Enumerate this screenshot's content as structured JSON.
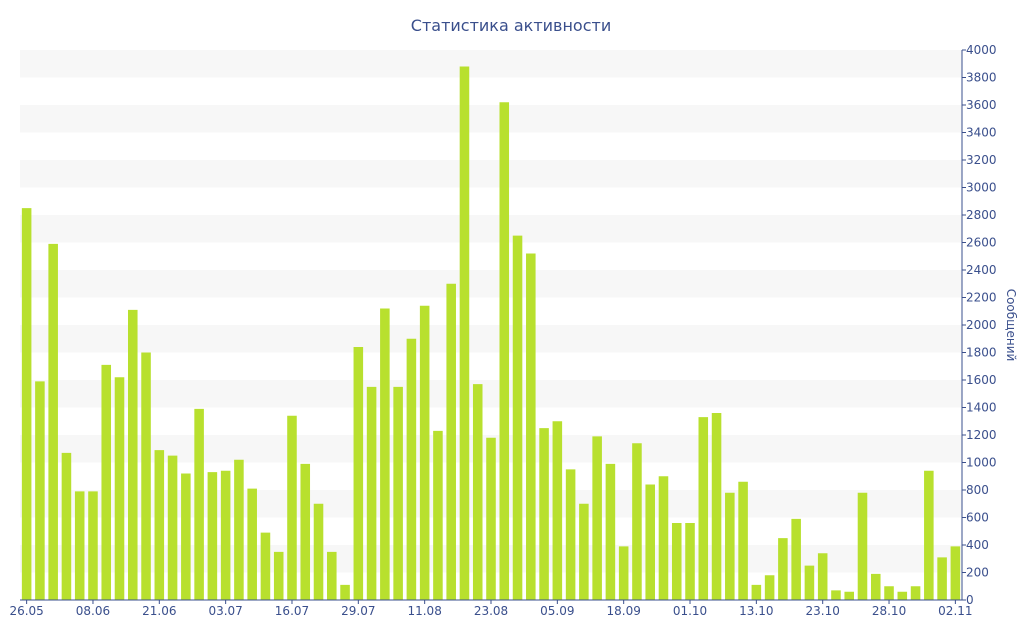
{
  "colors": {
    "bar": "#b8e02e",
    "band": "#f7f7f7",
    "axis": "#3a4f8c",
    "text": "#3a4f8c"
  },
  "chart_data": {
    "type": "bar",
    "title": "Статистика активности",
    "xlabel": "",
    "ylabel": "Сообщений",
    "ylim": [
      0,
      4000
    ],
    "yticks": [
      0,
      200,
      400,
      600,
      800,
      1000,
      1200,
      1400,
      1600,
      1800,
      2000,
      2200,
      2400,
      2600,
      2800,
      3000,
      3200,
      3400,
      3600,
      3800,
      4000
    ],
    "y_axis_position": "right",
    "alternating_bands": true,
    "xtick_labels": [
      {
        "label": "26.05",
        "index": 0
      },
      {
        "label": "08.06",
        "index": 5
      },
      {
        "label": "21.06",
        "index": 10
      },
      {
        "label": "03.07",
        "index": 15
      },
      {
        "label": "16.07",
        "index": 20
      },
      {
        "label": "29.07",
        "index": 25
      },
      {
        "label": "11.08",
        "index": 30
      },
      {
        "label": "23.08",
        "index": 35
      },
      {
        "label": "05.09",
        "index": 40
      },
      {
        "label": "18.09",
        "index": 45
      },
      {
        "label": "01.10",
        "index": 50
      },
      {
        "label": "13.10",
        "index": 55
      },
      {
        "label": "23.10",
        "index": 60
      },
      {
        "label": "28.10",
        "index": 65
      },
      {
        "label": "02.11",
        "index": 70
      }
    ],
    "values": [
      2850,
      1590,
      2590,
      1070,
      790,
      790,
      1710,
      1620,
      2110,
      1800,
      1090,
      1050,
      920,
      1390,
      930,
      940,
      1020,
      810,
      490,
      350,
      1340,
      990,
      700,
      350,
      110,
      1840,
      1550,
      2120,
      1550,
      1900,
      2140,
      1230,
      2300,
      3880,
      1570,
      1180,
      3620,
      2650,
      2520,
      1250,
      1300,
      950,
      700,
      1190,
      990,
      390,
      1140,
      840,
      900,
      560,
      560,
      1330,
      1360,
      780,
      860,
      110,
      180,
      450,
      590,
      250,
      340,
      70,
      60,
      780,
      190,
      100,
      60,
      100,
      940,
      310,
      390
    ]
  }
}
